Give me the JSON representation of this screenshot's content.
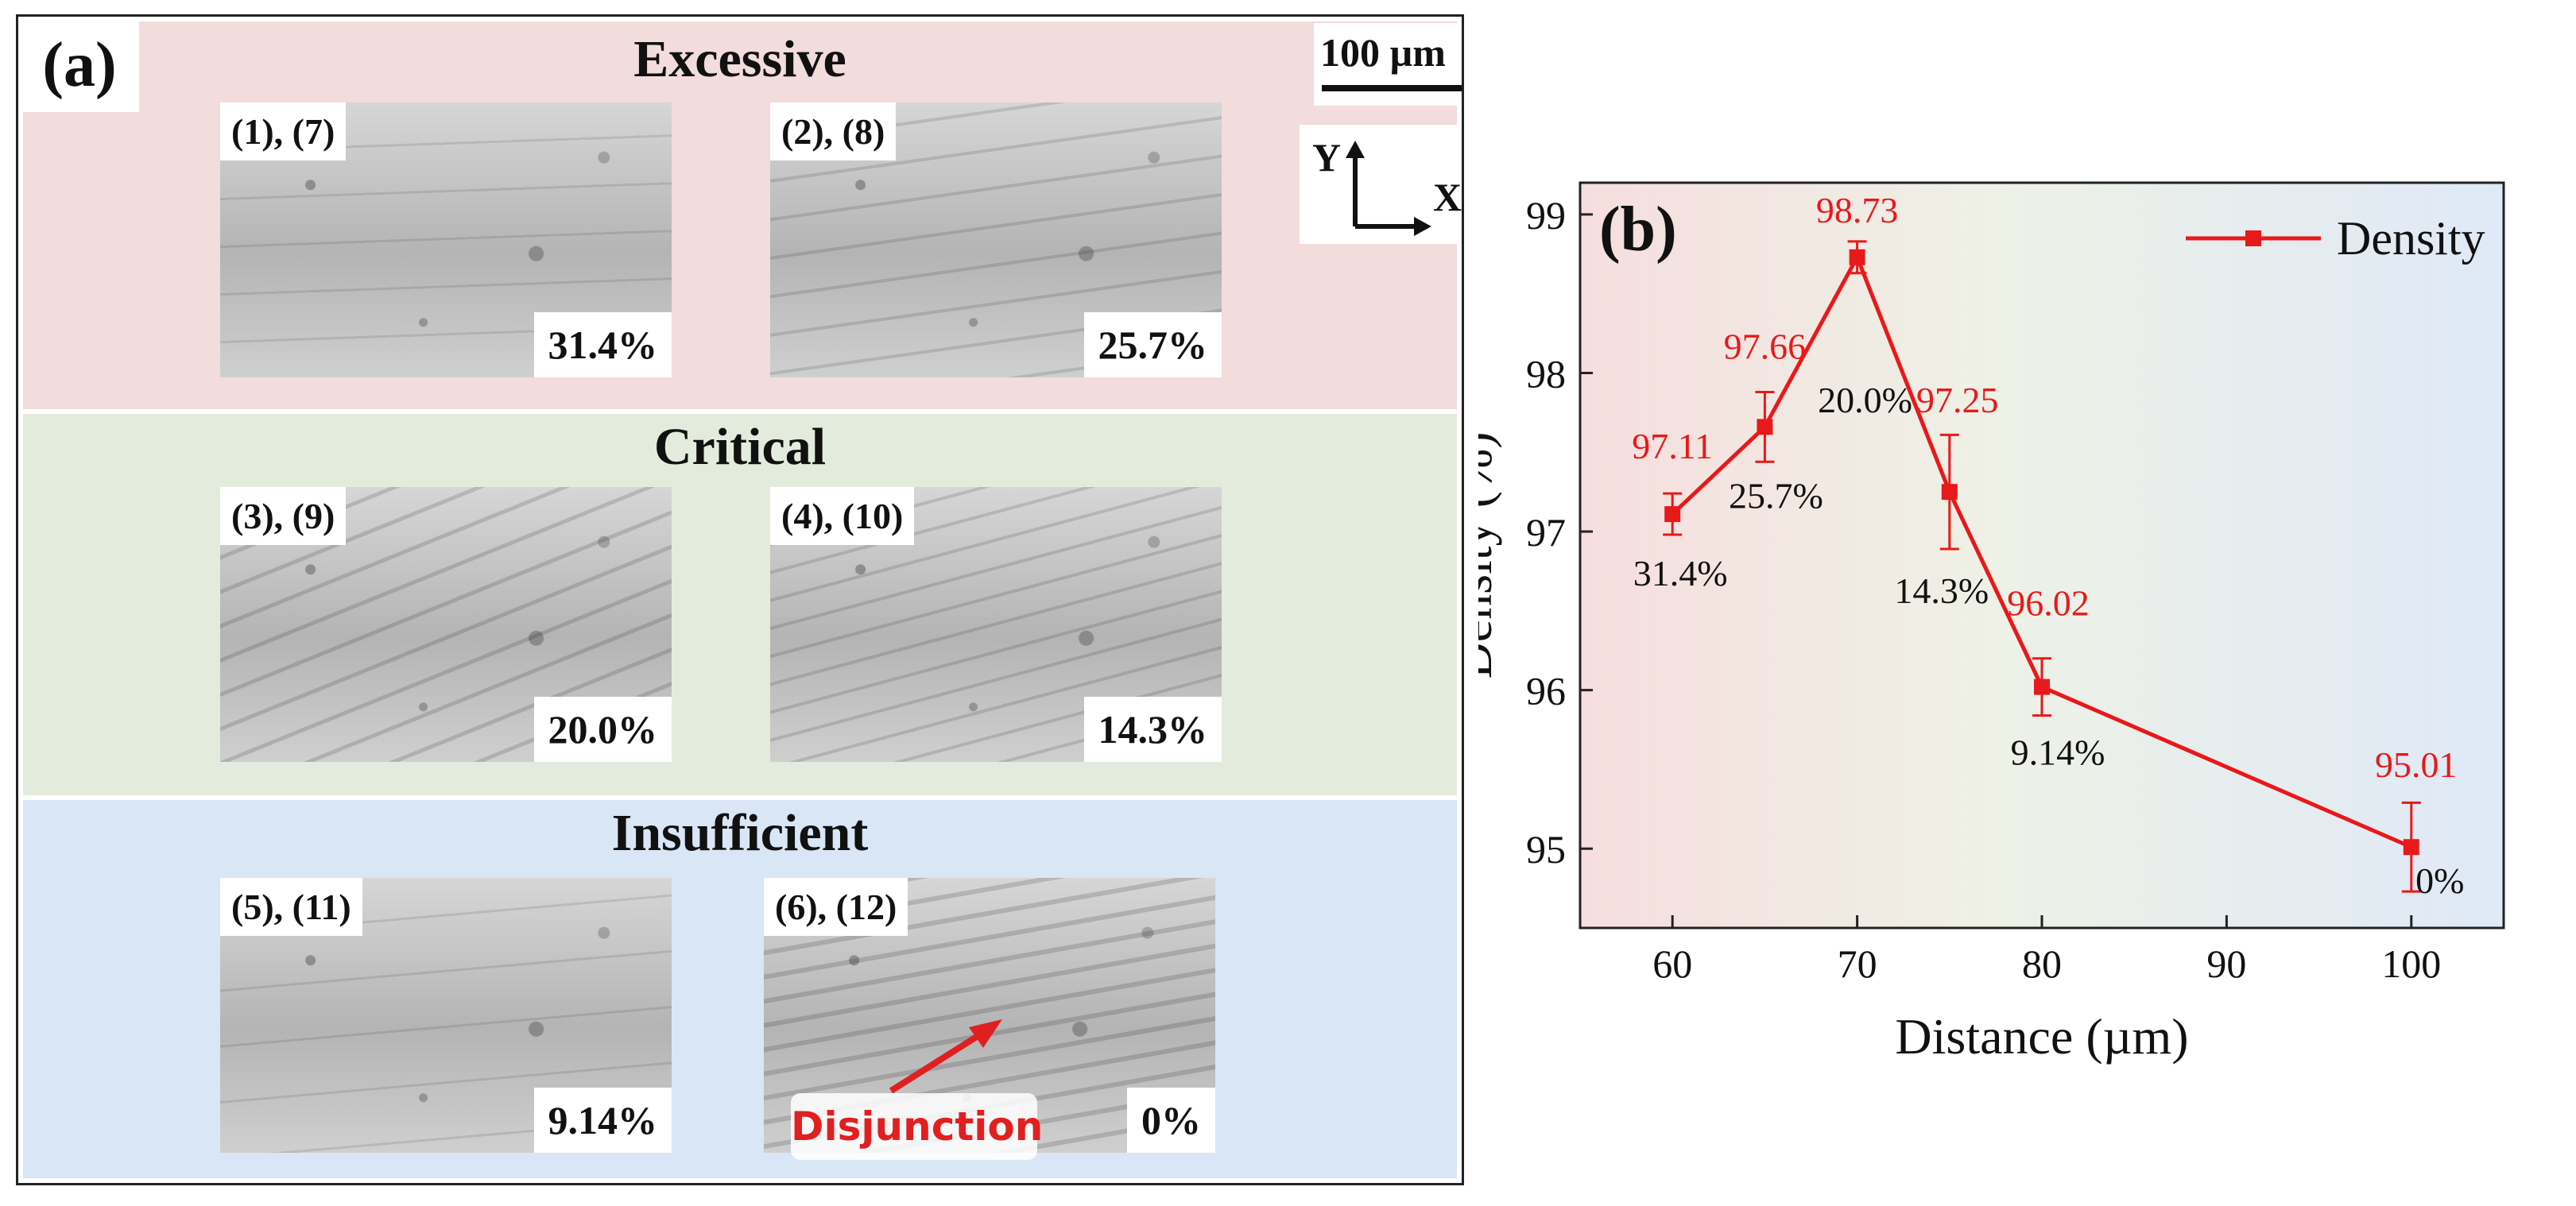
{
  "panel_a": {
    "label": "(a)",
    "scale_bar": "100 µm",
    "axis_y": "Y",
    "axis_x": "X",
    "bands": [
      {
        "title": "Excessive",
        "color": "#f2dcdc",
        "tiles": [
          {
            "tag": "(1), (7)",
            "pct": "31.4%"
          },
          {
            "tag": "(2), (8)",
            "pct": "25.7%"
          }
        ]
      },
      {
        "title": "Critical",
        "color": "#e3ecdc",
        "tiles": [
          {
            "tag": "(3), (9)",
            "pct": "20.0%"
          },
          {
            "tag": "(4), (10)",
            "pct": "14.3%"
          }
        ]
      },
      {
        "title": "Insufficient",
        "color": "#d9e6f6",
        "tiles": [
          {
            "tag": "(5), (11)",
            "pct": "9.14%"
          },
          {
            "tag": "(6), (12)",
            "pct": "0%"
          }
        ]
      }
    ],
    "disjunction_label": "Disjunction"
  },
  "chart_data": {
    "type": "line",
    "panel_label": "(b)",
    "xlabel": "Distance (µm)",
    "ylabel": "Density (%)",
    "xlim": [
      55,
      105
    ],
    "ylim": [
      94.5,
      99.2
    ],
    "xticks": [
      60,
      70,
      80,
      90,
      100
    ],
    "yticks": [
      95,
      96,
      97,
      98,
      99
    ],
    "legend": "Density",
    "legend_position": "top-right",
    "series": [
      {
        "name": "Density",
        "color": "#e8191a",
        "x": [
          60,
          65,
          70,
          75,
          80,
          100
        ],
        "values": [
          97.11,
          97.66,
          98.73,
          97.25,
          96.02,
          95.01
        ],
        "errors": [
          0.13,
          0.22,
          0.1,
          0.36,
          0.18,
          0.28
        ],
        "value_labels": [
          "97.11",
          "97.66",
          "98.73",
          "97.25",
          "96.02",
          "95.01"
        ],
        "percent_labels": [
          "31.4%",
          "25.7%",
          "20.0%",
          "14.3%",
          "9.14%",
          "0%"
        ]
      }
    ]
  }
}
